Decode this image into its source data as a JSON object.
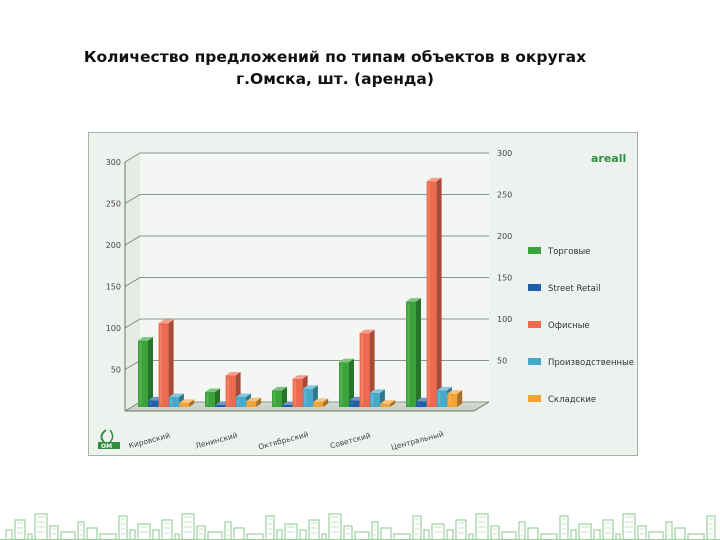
{
  "title": {
    "line1": "Количество предложений по типам объектов в округах",
    "line2": "г.Омска, шт. (аренда)"
  },
  "brand": {
    "name": "areall"
  },
  "colors": {
    "torgovye": "#3aa33a",
    "street_retail": "#1f5fa8",
    "ofisnye": "#ee6a4e",
    "proizvodstvennye": "#45a9c9",
    "skladskie": "#f2a233",
    "grid": "#6b756b",
    "axis_text": "#444444",
    "green": "#2e8f3e"
  },
  "chart_data": {
    "type": "bar",
    "categories": [
      "Кировский",
      "Ленинский",
      "Октябрьский",
      "Советский",
      "Центральный"
    ],
    "series": [
      {
        "name": "Торговые",
        "values": [
          80,
          18,
          20,
          54,
          127
        ]
      },
      {
        "name": "Street Retail",
        "values": [
          8,
          0,
          2,
          8,
          7
        ]
      },
      {
        "name": "Офисные",
        "values": [
          101,
          38,
          34,
          89,
          272
        ]
      },
      {
        "name": "Производственные",
        "values": [
          12,
          12,
          22,
          17,
          20
        ]
      },
      {
        "name": "Складские",
        "values": [
          5,
          7,
          6,
          4,
          16
        ]
      }
    ],
    "yticks_left": [
      "50",
      "100",
      "150",
      "200",
      "250",
      "300"
    ],
    "yticks_right": [
      "50",
      "100",
      "150",
      "200",
      "250",
      "300"
    ],
    "ylim": [
      0,
      300
    ],
    "legend_position": "right",
    "grid": true
  }
}
